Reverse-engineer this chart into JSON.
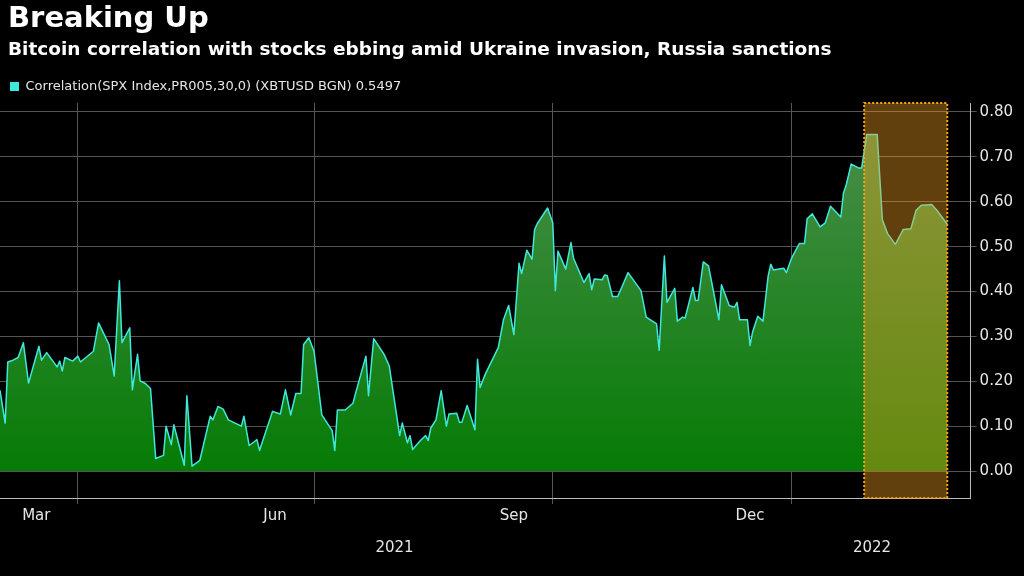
{
  "chart_data": {
    "type": "area",
    "title": "Breaking Up",
    "subtitle": "Bitcoin correlation with stocks ebbing amid Ukraine invasion, Russia sanctions",
    "x": [
      "2021-03-02",
      "2021-03-04",
      "2021-03-05",
      "2021-03-07",
      "2021-03-09",
      "2021-03-11",
      "2021-03-13",
      "2021-03-17",
      "2021-03-18",
      "2021-03-20",
      "2021-03-24",
      "2021-03-25",
      "2021-03-26",
      "2021-03-27",
      "2021-03-30",
      "2021-04-01",
      "2021-04-02",
      "2021-04-07",
      "2021-04-09",
      "2021-04-13",
      "2021-04-15",
      "2021-04-17",
      "2021-04-18",
      "2021-04-21",
      "2021-04-22",
      "2021-04-24",
      "2021-04-25",
      "2021-04-27",
      "2021-04-29",
      "2021-05-01",
      "2021-05-04",
      "2021-05-05",
      "2021-05-07",
      "2021-05-08",
      "2021-05-12",
      "2021-05-13",
      "2021-05-15",
      "2021-05-18",
      "2021-05-22",
      "2021-05-23",
      "2021-05-25",
      "2021-05-27",
      "2021-05-29",
      "2021-06-03",
      "2021-06-04",
      "2021-06-06",
      "2021-06-09",
      "2021-06-10",
      "2021-06-15",
      "2021-06-18",
      "2021-06-20",
      "2021-06-22",
      "2021-06-24",
      "2021-06-26",
      "2021-06-27",
      "2021-06-29",
      "2021-07-01",
      "2021-07-04",
      "2021-07-08",
      "2021-07-09",
      "2021-07-10",
      "2021-07-13",
      "2021-07-16",
      "2021-07-17",
      "2021-07-21",
      "2021-07-22",
      "2021-07-24",
      "2021-07-28",
      "2021-07-30",
      "2021-08-03",
      "2021-08-04",
      "2021-08-06",
      "2021-08-07",
      "2021-08-08",
      "2021-08-11",
      "2021-08-13",
      "2021-08-14",
      "2021-08-15",
      "2021-08-17",
      "2021-08-19",
      "2021-08-21",
      "2021-08-22",
      "2021-08-25",
      "2021-08-26",
      "2021-08-27",
      "2021-08-29",
      "2021-09-01",
      "2021-09-02",
      "2021-09-03",
      "2021-09-05",
      "2021-09-10",
      "2021-09-12",
      "2021-09-14",
      "2021-09-16",
      "2021-09-18",
      "2021-09-19",
      "2021-09-21",
      "2021-09-23",
      "2021-09-24",
      "2021-09-25",
      "2021-09-29",
      "2021-10-01",
      "2021-10-02",
      "2021-10-03",
      "2021-10-06",
      "2021-10-08",
      "2021-10-09",
      "2021-10-13",
      "2021-10-15",
      "2021-10-16",
      "2021-10-17",
      "2021-10-20",
      "2021-10-21",
      "2021-10-22",
      "2021-10-24",
      "2021-10-26",
      "2021-10-28",
      "2021-10-30",
      "2021-11-04",
      "2021-11-06",
      "2021-11-10",
      "2021-11-11",
      "2021-11-13",
      "2021-11-14",
      "2021-11-17",
      "2021-11-18",
      "2021-11-20",
      "2021-11-21",
      "2021-11-24",
      "2021-11-25",
      "2021-11-26",
      "2021-11-28",
      "2021-11-30",
      "2021-12-02",
      "2021-12-04",
      "2021-12-05",
      "2021-12-08",
      "2021-12-10",
      "2021-12-11",
      "2021-12-12",
      "2021-12-15",
      "2021-12-16",
      "2021-12-17",
      "2021-12-19",
      "2021-12-21",
      "2021-12-23",
      "2021-12-24",
      "2021-12-25",
      "2021-12-29",
      "2021-12-30",
      "2022-01-01",
      "2022-01-04",
      "2022-01-06",
      "2022-01-07",
      "2022-01-09",
      "2022-01-12",
      "2022-01-14",
      "2022-01-16",
      "2022-01-20",
      "2022-01-21",
      "2022-01-22",
      "2022-01-24",
      "2022-01-27",
      "2022-01-28",
      "2022-01-30",
      "2022-02-03",
      "2022-02-05",
      "2022-02-07",
      "2022-02-10",
      "2022-02-12",
      "2022-02-13",
      "2022-02-16",
      "2022-02-18",
      "2022-02-20",
      "2022-02-24",
      "2022-02-26",
      "2022-03-02"
    ],
    "series": [
      {
        "name": "Correlation(SPX Index,PR005,30,0) (XBTUSD BGN) 0.5497",
        "color": "#3fe8dc",
        "values": [
          0.18,
          0.107,
          0.243,
          0.247,
          0.253,
          0.286,
          0.196,
          0.278,
          0.247,
          0.264,
          0.232,
          0.245,
          0.223,
          0.253,
          0.245,
          0.256,
          0.243,
          0.267,
          0.33,
          0.282,
          0.212,
          0.424,
          0.286,
          0.319,
          0.181,
          0.26,
          0.201,
          0.195,
          0.184,
          0.028,
          0.035,
          0.1,
          0.059,
          0.103,
          0.013,
          0.168,
          0.011,
          0.024,
          0.122,
          0.114,
          0.144,
          0.138,
          0.114,
          0.1,
          0.122,
          0.057,
          0.07,
          0.046,
          0.133,
          0.127,
          0.181,
          0.125,
          0.173,
          0.173,
          0.282,
          0.297,
          0.267,
          0.125,
          0.09,
          0.046,
          0.136,
          0.136,
          0.151,
          0.173,
          0.256,
          0.168,
          0.295,
          0.26,
          0.234,
          0.079,
          0.107,
          0.063,
          0.079,
          0.048,
          0.068,
          0.079,
          0.068,
          0.096,
          0.114,
          0.179,
          0.1,
          0.127,
          0.129,
          0.109,
          0.109,
          0.146,
          0.092,
          0.249,
          0.186,
          0.216,
          0.275,
          0.337,
          0.369,
          0.304,
          0.463,
          0.44,
          0.492,
          0.472,
          0.538,
          0.551,
          0.586,
          0.553,
          0.402,
          0.49,
          0.45,
          0.509,
          0.474,
          0.42,
          0.44,
          0.404,
          0.428,
          0.426,
          0.437,
          0.435,
          0.389,
          0.389,
          0.415,
          0.442,
          0.402,
          0.343,
          0.328,
          0.269,
          0.479,
          0.376,
          0.407,
          0.334,
          0.343,
          0.341,
          0.409,
          0.38,
          0.38,
          0.466,
          0.457,
          0.398,
          0.337,
          0.415,
          0.369,
          0.365,
          0.376,
          0.337,
          0.337,
          0.28,
          0.31,
          0.345,
          0.334,
          0.435,
          0.461,
          0.448,
          0.452,
          0.442,
          0.474,
          0.507,
          0.507,
          0.562,
          0.573,
          0.544,
          0.553,
          0.59,
          0.566,
          0.619,
          0.636,
          0.684,
          0.675,
          0.675,
          0.75,
          0.75,
          0.56,
          0.529,
          0.505,
          0.527,
          0.538,
          0.54,
          0.581,
          0.592,
          0.594,
          0.581,
          0.55
        ]
      }
    ],
    "xlim": [
      "2021-03-02",
      "2022-03-11"
    ],
    "xticks": [
      {
        "value": "2021-03-16",
        "label": "Mar"
      },
      {
        "value": "2021-04-01",
        "label": null
      },
      {
        "value": "2021-06-16",
        "label": "Jun"
      },
      {
        "value": "2021-07-01",
        "label": null
      },
      {
        "value": "2021-09-16",
        "label": "Sep"
      },
      {
        "value": "2021-10-01",
        "label": null
      },
      {
        "value": "2021-12-16",
        "label": "Dec"
      },
      {
        "value": "2022-01-01",
        "label": null
      }
    ],
    "ylim": [
      -0.06,
      0.82
    ],
    "yticks": [
      {
        "value": 0,
        "label": "0.00"
      },
      {
        "value": 0.1,
        "label": "0.10"
      },
      {
        "value": 0.2,
        "label": "0.20"
      },
      {
        "value": 0.3,
        "label": "0.30"
      },
      {
        "value": 0.4,
        "label": "0.40"
      },
      {
        "value": 0.5,
        "label": "0.50"
      },
      {
        "value": 0.6,
        "label": "0.60"
      },
      {
        "value": 0.7,
        "label": "0.70"
      },
      {
        "value": 0.8,
        "label": "0.80"
      }
    ],
    "x2lim": [
      "2021-03-02",
      "2022-03-11"
    ],
    "x2ticks": [
      {
        "value": "2021-08-01",
        "label": "2021"
      },
      {
        "value": "2022-02-01",
        "label": "2022"
      }
    ],
    "bands": [
      {
        "axis": "x",
        "from": "2022-01-29",
        "to": "2022-03-02",
        "color": "#f5a020"
      }
    ],
    "grid": true,
    "legend": "top left",
    "marker": "none",
    "line_style": "solid"
  }
}
